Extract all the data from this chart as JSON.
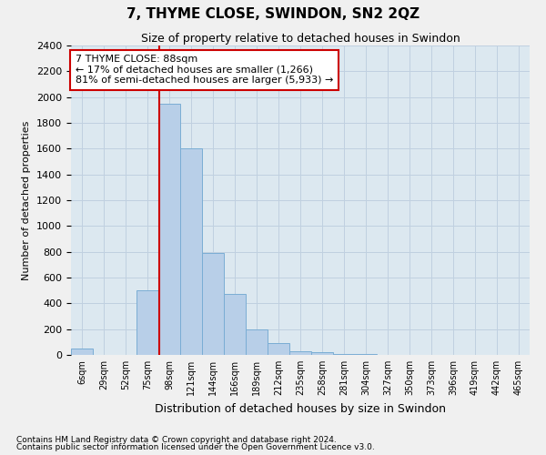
{
  "title": "7, THYME CLOSE, SWINDON, SN2 2QZ",
  "subtitle": "Size of property relative to detached houses in Swindon",
  "xlabel": "Distribution of detached houses by size in Swindon",
  "ylabel": "Number of detached properties",
  "categories": [
    "6sqm",
    "29sqm",
    "52sqm",
    "75sqm",
    "98sqm",
    "121sqm",
    "144sqm",
    "166sqm",
    "189sqm",
    "212sqm",
    "235sqm",
    "258sqm",
    "281sqm",
    "304sqm",
    "327sqm",
    "350sqm",
    "373sqm",
    "396sqm",
    "419sqm",
    "442sqm",
    "465sqm"
  ],
  "values": [
    50,
    0,
    0,
    500,
    1950,
    1600,
    790,
    470,
    200,
    90,
    30,
    20,
    8,
    8,
    3,
    2,
    0,
    0,
    0,
    0,
    0
  ],
  "bar_color": "#b8cfe8",
  "bar_edge_color": "#7aadd4",
  "vline_x": 3.55,
  "vline_color": "#cc0000",
  "annotation_text": "7 THYME CLOSE: 88sqm\n← 17% of detached houses are smaller (1,266)\n81% of semi-detached houses are larger (5,933) →",
  "annotation_box_color": "#ffffff",
  "annotation_box_edge": "#cc0000",
  "ylim": [
    0,
    2400
  ],
  "yticks": [
    0,
    200,
    400,
    600,
    800,
    1000,
    1200,
    1400,
    1600,
    1800,
    2000,
    2200,
    2400
  ],
  "grid_color": "#c0d0e0",
  "bg_color": "#dce8f0",
  "fig_bg_color": "#f0f0f0",
  "footnote1": "Contains HM Land Registry data © Crown copyright and database right 2024.",
  "footnote2": "Contains public sector information licensed under the Open Government Licence v3.0."
}
